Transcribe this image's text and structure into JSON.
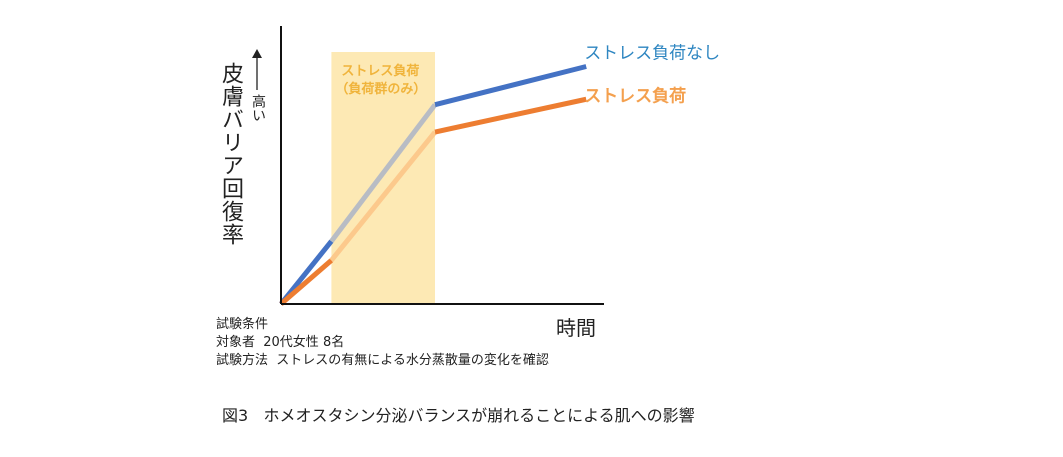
{
  "chart_data": {
    "type": "line",
    "title": "",
    "xlabel": "時間",
    "ylabel": "皮膚バリア回復率",
    "ylabel_arrow_note": "高い",
    "xlim": [
      0,
      10
    ],
    "ylim": [
      0,
      10
    ],
    "grid": false,
    "axis_ticks": false,
    "shaded_region": {
      "x_start": 1.8,
      "x_end": 5.5,
      "label_line1": "ストレス負荷",
      "label_line2": "（負荷群のみ）",
      "color": "#fde9b4",
      "label_color": "#f0b43c"
    },
    "series": [
      {
        "name": "ストレス負荷なし",
        "color": "#4472c4",
        "label_color": "#2e86c1",
        "faded_color": "#b8bcc4",
        "x": [
          0,
          1.8,
          5.5,
          10.9
        ],
        "y": [
          0,
          2.3,
          7.3,
          8.7
        ]
      },
      {
        "name": "ストレス負荷",
        "color": "#ed7d31",
        "label_color": "#f4a04e",
        "faded_color": "#fcc98c",
        "x": [
          0,
          1.8,
          5.5,
          10.9
        ],
        "y": [
          0,
          1.6,
          6.3,
          7.5
        ]
      }
    ]
  },
  "conditions": {
    "line1": "試験条件",
    "line2": "対象者  20代女性 8名",
    "line3": "試験方法  ストレスの有無による水分蒸散量の変化を確認"
  },
  "caption": "図3   ホメオスタシン分泌バランスが崩れることによる肌への影響"
}
